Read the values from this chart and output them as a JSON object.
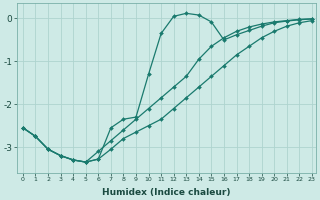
{
  "xlabel": "Humidex (Indice chaleur)",
  "background_color": "#ceeae6",
  "grid_color": "#aed4cf",
  "line_color": "#1a7a6e",
  "x_min": -0.5,
  "x_max": 23.3,
  "y_min": -3.6,
  "y_max": 0.35,
  "line_spike_x": [
    0,
    1,
    2,
    3,
    4,
    5,
    6,
    7,
    8,
    9,
    10,
    11,
    12,
    13,
    14,
    15,
    16,
    17,
    18,
    19,
    20,
    21,
    22,
    23
  ],
  "line_spike_y": [
    -2.55,
    -2.75,
    -3.05,
    -3.2,
    -3.3,
    -3.35,
    -3.28,
    -2.55,
    -2.35,
    -2.3,
    -1.3,
    -0.35,
    0.05,
    0.12,
    0.08,
    -0.08,
    -0.5,
    -0.38,
    -0.28,
    -0.18,
    -0.1,
    -0.06,
    -0.03,
    -0.01
  ],
  "line_upper_x": [
    0,
    1,
    2,
    3,
    4,
    5,
    6,
    7,
    8,
    9,
    10,
    11,
    12,
    13,
    14,
    15,
    16,
    17,
    18,
    19,
    20,
    21,
    22,
    23
  ],
  "line_upper_y": [
    -2.55,
    -2.75,
    -3.05,
    -3.2,
    -3.3,
    -3.35,
    -3.1,
    -2.85,
    -2.6,
    -2.35,
    -2.1,
    -1.85,
    -1.6,
    -1.35,
    -0.95,
    -0.65,
    -0.45,
    -0.3,
    -0.2,
    -0.13,
    -0.08,
    -0.05,
    -0.02,
    -0.01
  ],
  "line_lower_x": [
    0,
    1,
    2,
    3,
    4,
    5,
    6,
    7,
    8,
    9,
    10,
    11,
    12,
    13,
    14,
    15,
    16,
    17,
    18,
    19,
    20,
    21,
    22,
    23
  ],
  "line_lower_y": [
    -2.55,
    -2.75,
    -3.05,
    -3.2,
    -3.3,
    -3.35,
    -3.28,
    -3.05,
    -2.8,
    -2.65,
    -2.5,
    -2.35,
    -2.1,
    -1.85,
    -1.6,
    -1.35,
    -1.1,
    -0.85,
    -0.65,
    -0.45,
    -0.3,
    -0.18,
    -0.1,
    -0.05
  ],
  "yticks": [
    0,
    -1,
    -2,
    -3
  ],
  "xticks": [
    0,
    1,
    2,
    3,
    4,
    5,
    6,
    7,
    8,
    9,
    10,
    11,
    12,
    13,
    14,
    15,
    16,
    17,
    18,
    19,
    20,
    21,
    22,
    23
  ]
}
